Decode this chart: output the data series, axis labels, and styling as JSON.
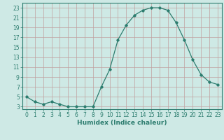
{
  "x": [
    0,
    1,
    2,
    3,
    4,
    5,
    6,
    7,
    8,
    9,
    10,
    11,
    12,
    13,
    14,
    15,
    16,
    17,
    18,
    19,
    20,
    21,
    22,
    23
  ],
  "y": [
    5,
    4,
    3.5,
    4,
    3.5,
    3,
    3,
    3,
    3,
    7,
    10.5,
    16.5,
    19.5,
    21.5,
    22.5,
    23,
    23,
    22.5,
    20,
    16.5,
    12.5,
    9.5,
    8,
    7.5
  ],
  "xlabel": "Humidex (Indice chaleur)",
  "line_color": "#2d7d6f",
  "marker": "D",
  "marker_size": 1.8,
  "bg_color": "#cee9e5",
  "grid_color": "#c0a0a0",
  "ylim": [
    2.5,
    24
  ],
  "xlim": [
    -0.5,
    23.5
  ],
  "yticks": [
    3,
    5,
    7,
    9,
    11,
    13,
    15,
    17,
    19,
    21,
    23
  ],
  "xticks": [
    0,
    1,
    2,
    3,
    4,
    5,
    6,
    7,
    8,
    9,
    10,
    11,
    12,
    13,
    14,
    15,
    16,
    17,
    18,
    19,
    20,
    21,
    22,
    23
  ],
  "tick_fontsize": 5.5,
  "xlabel_fontsize": 6.5
}
